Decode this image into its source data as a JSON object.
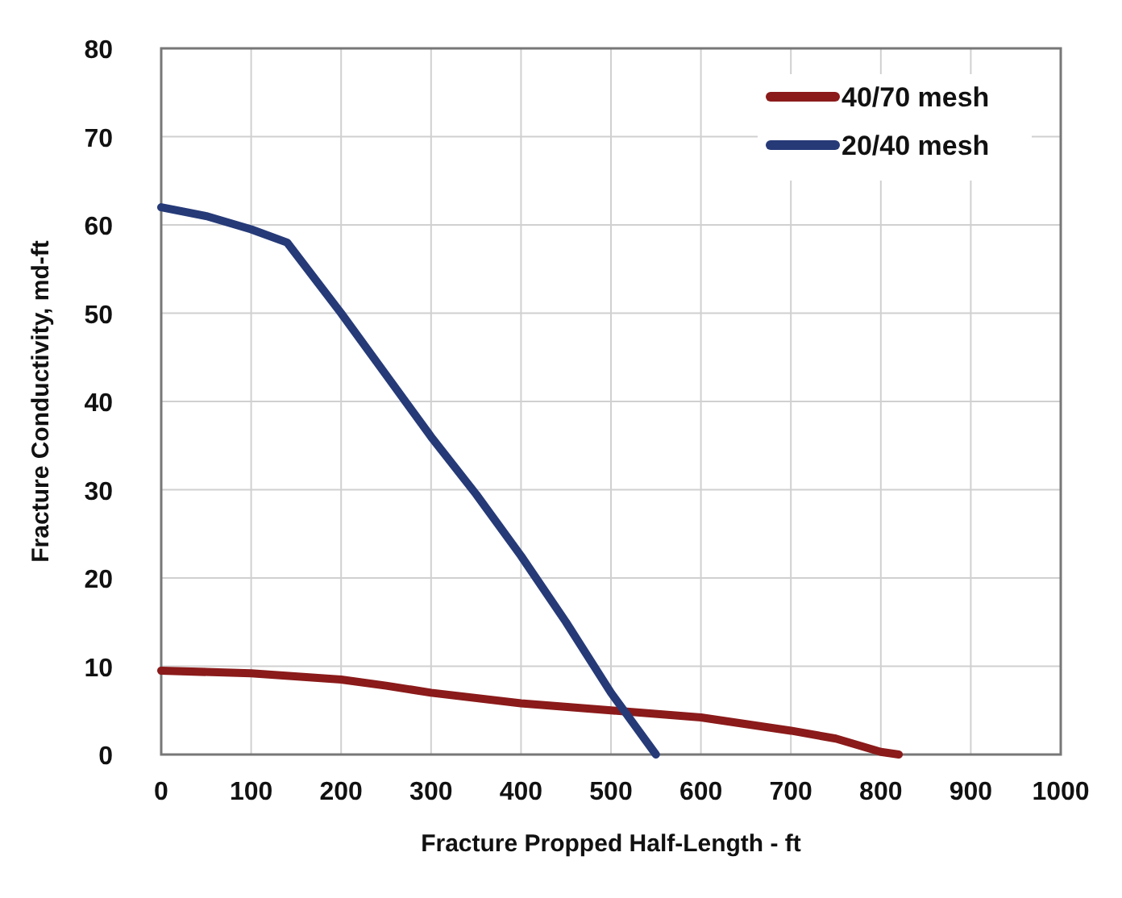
{
  "chart_data": {
    "type": "line",
    "xlabel": "Fracture Propped Half-Length - ft",
    "ylabel": "Fracture Conductivity, md-ft",
    "xlim": [
      0,
      1000
    ],
    "xticks": [
      0,
      100,
      200,
      300,
      400,
      500,
      600,
      700,
      800,
      900,
      1000
    ],
    "ylim": [
      0,
      80
    ],
    "yticks": [
      0,
      10,
      20,
      30,
      40,
      50,
      60,
      70,
      80
    ],
    "grid": true,
    "legend": "top right",
    "marker": "none",
    "line_style": "solid",
    "series": [
      {
        "name": "40/70 mesh",
        "color": "#8b1a1a",
        "x": [
          0,
          100,
          200,
          250,
          300,
          400,
          500,
          600,
          700,
          750,
          800,
          820
        ],
        "values": [
          9.5,
          9.2,
          8.5,
          7.8,
          7,
          5.8,
          5,
          4.2,
          2.7,
          1.8,
          0.3,
          0
        ]
      },
      {
        "name": "20/40 mesh",
        "color": "#263a78",
        "x": [
          0,
          50,
          100,
          140,
          200,
          250,
          300,
          350,
          400,
          450,
          500,
          550
        ],
        "values": [
          62,
          61,
          59.5,
          58,
          50,
          43,
          36,
          29.5,
          22.5,
          15,
          7,
          0
        ]
      }
    ]
  }
}
